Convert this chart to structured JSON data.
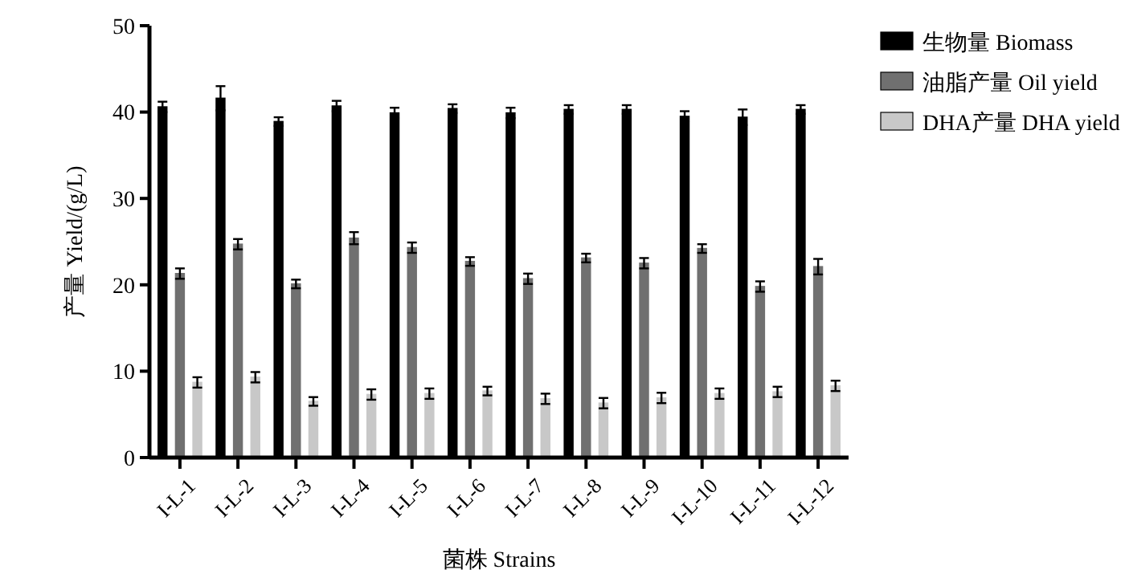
{
  "chart_data": {
    "type": "bar",
    "xlabel": "菌株  Strains",
    "ylabel": "产量 Yield/(g/L)",
    "categories": [
      "I-L-1",
      "I-L-2",
      "I-L-3",
      "I-L-4",
      "I-L-5",
      "I-L-6",
      "I-L-7",
      "I-L-8",
      "I-L-9",
      "I-L-10",
      "I-L-11",
      "I-L-12"
    ],
    "series": [
      {
        "name": "生物量  Biomass",
        "color": "#000000",
        "values": [
          40.6,
          41.6,
          38.9,
          40.7,
          39.9,
          40.4,
          39.9,
          40.3,
          40.3,
          39.5,
          39.4,
          40.3
        ],
        "errors": [
          0.6,
          1.4,
          0.5,
          0.6,
          0.6,
          0.5,
          0.6,
          0.5,
          0.5,
          0.6,
          0.9,
          0.5
        ]
      },
      {
        "name": "油脂产量  Oil yield",
        "color": "#707070",
        "values": [
          21.3,
          24.7,
          20.1,
          25.4,
          24.3,
          22.7,
          20.7,
          23.1,
          22.5,
          24.2,
          19.8,
          22.1
        ],
        "errors": [
          0.6,
          0.6,
          0.5,
          0.7,
          0.6,
          0.5,
          0.6,
          0.5,
          0.6,
          0.5,
          0.6,
          0.9
        ]
      },
      {
        "name": "DHA产量  DHA yield",
        "color": "#c8c8c8",
        "values": [
          8.7,
          9.3,
          6.5,
          7.3,
          7.4,
          7.7,
          6.8,
          6.3,
          6.9,
          7.4,
          7.6,
          8.3
        ],
        "errors": [
          0.6,
          0.6,
          0.5,
          0.6,
          0.6,
          0.5,
          0.6,
          0.6,
          0.6,
          0.6,
          0.6,
          0.6
        ]
      }
    ],
    "ylim": [
      0,
      50
    ],
    "yticks": [
      0,
      10,
      20,
      30,
      40,
      50
    ],
    "grid": false,
    "legend": "top right"
  }
}
